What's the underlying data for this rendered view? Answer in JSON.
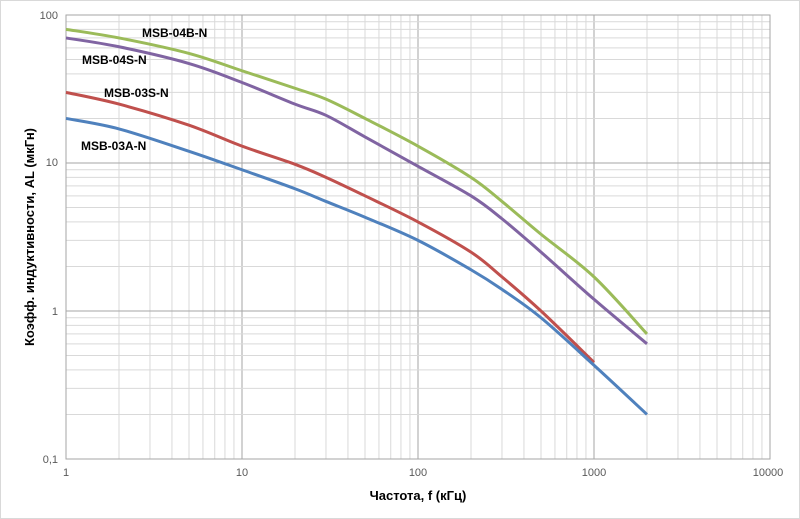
{
  "chart_data": {
    "type": "line",
    "xlabel": "Частота, f (кГц)",
    "ylabel": "Коэфф. индуктивности, AL (мкГн)",
    "x_scale": "log",
    "y_scale": "log",
    "xlim": [
      1,
      10000
    ],
    "ylim": [
      0.1,
      100
    ],
    "x_ticks": [
      "1",
      "10",
      "100",
      "1000",
      "10000"
    ],
    "y_ticks": [
      "0,1",
      "1",
      "10",
      "100"
    ],
    "grid": true,
    "legend": "inline labels",
    "series": [
      {
        "name": "MSB-04B-N",
        "color": "#9bbb59",
        "x": [
          1,
          2,
          5,
          10,
          20,
          30,
          50,
          100,
          200,
          300,
          500,
          1000,
          2000
        ],
        "y": [
          80,
          70,
          55,
          42,
          32,
          27,
          20,
          13,
          8,
          5.5,
          3.3,
          1.7,
          0.7
        ]
      },
      {
        "name": "MSB-04S-N",
        "color": "#8064a2",
        "x": [
          1,
          2,
          5,
          10,
          20,
          30,
          50,
          100,
          200,
          300,
          500,
          1000,
          2000
        ],
        "y": [
          70,
          61,
          47,
          35,
          25,
          21,
          15,
          9.5,
          6,
          4.2,
          2.5,
          1.2,
          0.6
        ]
      },
      {
        "name": "MSB-03S-N",
        "color": "#c0504d",
        "x": [
          1,
          2,
          5,
          10,
          20,
          30,
          50,
          100,
          200,
          300,
          500,
          1000
        ],
        "y": [
          30,
          25,
          18,
          13,
          9.8,
          8,
          6,
          4,
          2.5,
          1.7,
          1.0,
          0.45
        ]
      },
      {
        "name": "MSB-03A-N",
        "color": "#4f81bd",
        "x": [
          1,
          2,
          5,
          10,
          20,
          30,
          50,
          100,
          200,
          300,
          500,
          1000,
          2000
        ],
        "y": [
          20,
          17,
          12,
          9,
          6.7,
          5.5,
          4.3,
          3,
          1.9,
          1.4,
          0.9,
          0.43,
          0.2
        ]
      }
    ]
  }
}
